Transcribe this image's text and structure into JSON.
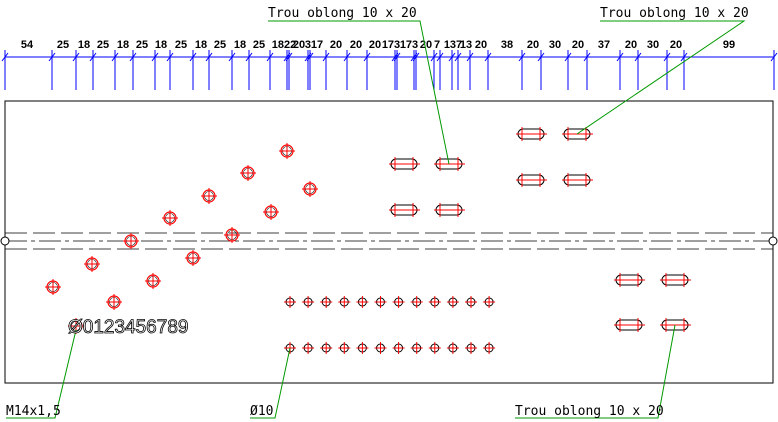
{
  "dimension_labels": [
    "54",
    "25",
    "18",
    "25",
    "18",
    "25",
    "18",
    "25",
    "18",
    "25",
    "18",
    "25",
    "1822",
    "20",
    "317",
    "20",
    "20",
    "20",
    "173",
    "173",
    "20",
    "7",
    "137",
    "13",
    "20",
    "38",
    "20",
    "30",
    "20",
    "37",
    "20",
    "30",
    "20",
    "99"
  ],
  "annotations": {
    "slot_top_left": "Trou oblong 10 x 20",
    "slot_top_right": "Trou oblong 10 x 20",
    "slot_bottom": "Trou oblong 10 x 20",
    "thread": "M14x1,5",
    "hole": "Ø10",
    "text_sample": "Ø0123456789"
  },
  "colors": {
    "dimension": "#0000ff",
    "hole_center": "#ff0000",
    "leader": "#009900",
    "outline": "#000000"
  }
}
